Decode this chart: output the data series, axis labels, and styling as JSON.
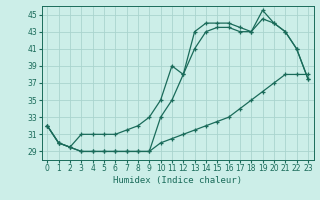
{
  "xlabel": "Humidex (Indice chaleur)",
  "bg_color": "#cceee8",
  "grid_color": "#aad4ce",
  "line_color": "#1a6b5a",
  "xlim": [
    -0.5,
    23.5
  ],
  "ylim": [
    28,
    46
  ],
  "xticks": [
    0,
    1,
    2,
    3,
    4,
    5,
    6,
    7,
    8,
    9,
    10,
    11,
    12,
    13,
    14,
    15,
    16,
    17,
    18,
    19,
    20,
    21,
    22,
    23
  ],
  "yticks": [
    29,
    31,
    33,
    35,
    37,
    39,
    41,
    43,
    45
  ],
  "line1_x": [
    0,
    1,
    2,
    3,
    4,
    5,
    6,
    7,
    8,
    9,
    10,
    11,
    12,
    13,
    14,
    15,
    16,
    17,
    18,
    19,
    20,
    21,
    22,
    23
  ],
  "line1_y": [
    32,
    30,
    29.5,
    29,
    29,
    29,
    29,
    29,
    29,
    29,
    30,
    30.5,
    31,
    31.5,
    32,
    32.5,
    33,
    34,
    35,
    36,
    37,
    38,
    38,
    38
  ],
  "line2_x": [
    0,
    1,
    2,
    3,
    4,
    5,
    6,
    7,
    8,
    9,
    10,
    11,
    12,
    13,
    14,
    15,
    16,
    17,
    18,
    19,
    20,
    21,
    22,
    23
  ],
  "line2_y": [
    32,
    30,
    29.5,
    31,
    31,
    31,
    31,
    31.5,
    32,
    33,
    35,
    39,
    38,
    43,
    44,
    44,
    44,
    43.5,
    43,
    44.5,
    44,
    43,
    41,
    37.5
  ],
  "line3_x": [
    0,
    1,
    2,
    3,
    4,
    5,
    6,
    7,
    8,
    9,
    10,
    11,
    12,
    13,
    14,
    15,
    16,
    17,
    18,
    19,
    20,
    21,
    22,
    23
  ],
  "line3_y": [
    32,
    30,
    29.5,
    29,
    29,
    29,
    29,
    29,
    29,
    29,
    33,
    35,
    38,
    41,
    43,
    43.5,
    43.5,
    43,
    43,
    45.5,
    44,
    43,
    41,
    37.5
  ]
}
